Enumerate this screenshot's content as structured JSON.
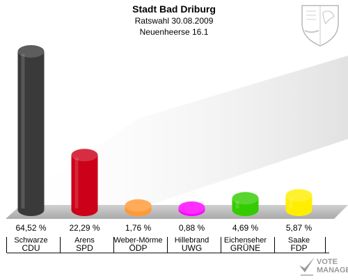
{
  "header": {
    "title": "Stadt Bad Driburg",
    "subtitle_1": "Ratswahl 30.08.2009",
    "subtitle_2": "Neuenheerse 16.1"
  },
  "logo": {
    "line1": "VOTE",
    "line2": "MANAGER"
  },
  "chart_data": {
    "type": "bar",
    "title": "Stadt Bad Driburg",
    "categories": [
      "CDU",
      "SPD",
      "ÖDP",
      "UWG",
      "GRÜNE",
      "FDP"
    ],
    "candidates": [
      "Schwarze",
      "Arens",
      "Weber-Mörme",
      "Hillebrand",
      "Eichenseher",
      "Saake"
    ],
    "values": [
      64.52,
      22.29,
      1.76,
      0.88,
      4.69,
      5.87
    ],
    "value_labels": [
      "64,52 %",
      "22,29 %",
      "1,76 %",
      "0,88 %",
      "4,69 %",
      "5,87 %"
    ],
    "colors": [
      "#3a3a3a",
      "#cc0018",
      "#ff9933",
      "#ff00ff",
      "#33cc00",
      "#ffee00"
    ],
    "ylim": [
      0,
      70
    ],
    "grid": false,
    "legend": "none"
  }
}
